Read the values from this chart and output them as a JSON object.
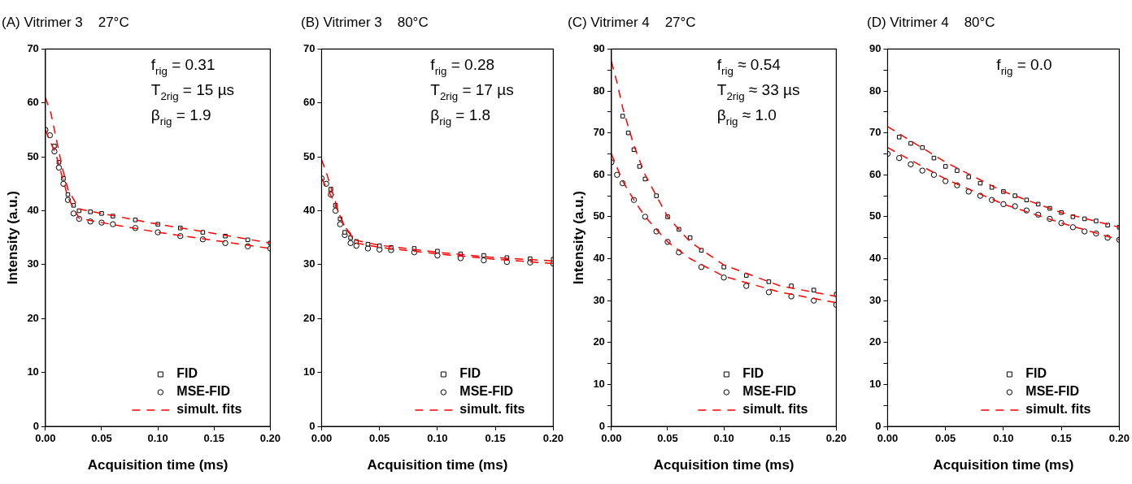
{
  "chart_data": [
    {
      "type": "scatter",
      "title": "(A) Vitrimer 3    27°C",
      "xlabel": "Acquisition time (ms)",
      "ylabel": "Intensity (a.u.)",
      "xlim": [
        0,
        0.2
      ],
      "xticks": [
        {
          "value": 0,
          "label": "0.00"
        },
        {
          "value": 0.05,
          "label": "0.05"
        },
        {
          "value": 0.1,
          "label": "0.10"
        },
        {
          "value": 0.15,
          "label": "0.15"
        },
        {
          "value": 0.2,
          "label": "0.20"
        }
      ],
      "ylim": [
        0,
        70
      ],
      "yticks": [
        0,
        10,
        20,
        30,
        40,
        50,
        60,
        70
      ],
      "grid": false,
      "legend": "bottom right",
      "annotations": [
        "f$_{rig}$ = 0.31",
        "T$_{2rig}$ = 15 µs",
        "β$_{rig}$ = 1.9"
      ],
      "series": [
        {
          "name": "FID",
          "marker": "square",
          "color": "#000000",
          "x": [
            0.008,
            0.012,
            0.016,
            0.02,
            0.025,
            0.03,
            0.04,
            0.05,
            0.06,
            0.08,
            0.1,
            0.12,
            0.14,
            0.16,
            0.18,
            0.2
          ],
          "values": [
            52,
            49,
            46,
            43,
            41,
            40,
            39.8,
            39.5,
            39,
            38.3,
            37.5,
            36.8,
            36,
            35.3,
            34.6,
            34
          ]
        },
        {
          "name": "MSE-FID",
          "marker": "circle",
          "color": "#000000",
          "x": [
            0,
            0.004,
            0.008,
            0.012,
            0.016,
            0.02,
            0.025,
            0.03,
            0.04,
            0.05,
            0.06,
            0.08,
            0.1,
            0.12,
            0.14,
            0.16,
            0.18,
            0.2
          ],
          "values": [
            55,
            54,
            51,
            48,
            45,
            42,
            39.5,
            38.5,
            38,
            37.8,
            37.5,
            36.8,
            36,
            35.3,
            34.7,
            34,
            33.4,
            33
          ]
        },
        {
          "name": "simult. fits",
          "type": "line",
          "line_style": "dashed",
          "color": "#ff0000",
          "x": [
            0,
            0.005,
            0.01,
            0.015,
            0.02,
            0.03,
            0.05,
            0.1,
            0.15,
            0.2
          ],
          "values": [
            61,
            58,
            53,
            48,
            44,
            40.3,
            39.5,
            37.5,
            35.8,
            34
          ]
        },
        {
          "type": "line",
          "line_style": "dashed",
          "color": "#ff0000",
          "x": [
            0,
            0.01,
            0.02,
            0.03,
            0.05,
            0.1,
            0.15,
            0.2
          ],
          "values": [
            55,
            50,
            42.5,
            38.6,
            37.8,
            36,
            34.5,
            33
          ]
        }
      ]
    },
    {
      "type": "scatter",
      "title": "(B) Vitrimer 3    80°C",
      "xlabel": "Acquisition time (ms)",
      "xlim": [
        0,
        0.2
      ],
      "xticks": [
        {
          "value": 0,
          "label": "0.00"
        },
        {
          "value": 0.05,
          "label": "0.05"
        },
        {
          "value": 0.1,
          "label": "0.10"
        },
        {
          "value": 0.15,
          "label": "0.15"
        },
        {
          "value": 0.2,
          "label": "0.20"
        }
      ],
      "ylim": [
        0,
        70
      ],
      "yticks": [
        0,
        10,
        20,
        30,
        40,
        50,
        60,
        70
      ],
      "grid": false,
      "legend": "bottom right",
      "annotations": [
        "f$_{rig}$ = 0.28",
        "T$_{2rig}$ = 17 µs",
        "β$_{rig}$ = 1.8"
      ],
      "series": [
        {
          "name": "FID",
          "marker": "square",
          "color": "#000000",
          "x": [
            0.008,
            0.012,
            0.016,
            0.02,
            0.025,
            0.03,
            0.04,
            0.05,
            0.06,
            0.08,
            0.1,
            0.12,
            0.14,
            0.16,
            0.18,
            0.2
          ],
          "values": [
            44,
            41,
            38.5,
            36,
            35,
            34.3,
            33.8,
            33.5,
            33.2,
            33,
            32.5,
            32,
            31.7,
            31.3,
            31.1,
            31
          ]
        },
        {
          "name": "MSE-FID",
          "marker": "circle",
          "color": "#000000",
          "x": [
            0,
            0.004,
            0.008,
            0.012,
            0.016,
            0.02,
            0.025,
            0.03,
            0.04,
            0.05,
            0.06,
            0.08,
            0.1,
            0.12,
            0.14,
            0.16,
            0.18,
            0.2
          ],
          "values": [
            46,
            45,
            43,
            40,
            37.5,
            35.5,
            34,
            33.5,
            33,
            32.8,
            32.7,
            32.3,
            31.7,
            31.2,
            30.8,
            30.5,
            30.4,
            30.2
          ]
        },
        {
          "name": "simult. fits",
          "type": "line",
          "line_style": "dashed",
          "color": "#ff0000",
          "x": [
            0,
            0.005,
            0.01,
            0.015,
            0.02,
            0.03,
            0.05,
            0.1,
            0.15,
            0.2
          ],
          "values": [
            49.5,
            46.5,
            43,
            39.5,
            37,
            34.5,
            33.6,
            32.3,
            31.3,
            30.7
          ]
        },
        {
          "type": "line",
          "line_style": "dashed",
          "color": "#ff0000",
          "x": [
            0,
            0.01,
            0.02,
            0.03,
            0.05,
            0.1,
            0.15,
            0.2
          ],
          "values": [
            46,
            42,
            37,
            34,
            33.2,
            32,
            31,
            30.2
          ]
        }
      ]
    },
    {
      "type": "scatter",
      "title": "(C) Vitrimer 4    27°C",
      "xlabel": "Acquisition time (ms)",
      "ylabel": "Intensity (a.u.)",
      "xlim": [
        0,
        0.2
      ],
      "xticks": [
        {
          "value": 0,
          "label": "0.00"
        },
        {
          "value": 0.05,
          "label": "0.05"
        },
        {
          "value": 0.1,
          "label": "0.10"
        },
        {
          "value": 0.15,
          "label": "0.15"
        },
        {
          "value": 0.2,
          "label": "0.20"
        }
      ],
      "ylim": [
        0,
        90
      ],
      "yticks": [
        0,
        {
          "value": 5,
          "label": null
        },
        10,
        {
          "value": 15,
          "label": null
        },
        20,
        {
          "value": 25,
          "label": null
        },
        30,
        {
          "value": 35,
          "label": null
        },
        40,
        {
          "value": 45,
          "label": null
        },
        50,
        {
          "value": 55,
          "label": null
        },
        60,
        {
          "value": 65,
          "label": null
        },
        70,
        {
          "value": 75,
          "label": null
        },
        80,
        {
          "value": 85,
          "label": null
        },
        90
      ],
      "grid": false,
      "legend": "bottom right",
      "annotations": [
        "f$_{rig}$ ≈ 0.54",
        "T$_{2rig}$ ≈ 33 µs",
        "β$_{rig}$ ≈ 1.0"
      ],
      "series": [
        {
          "name": "FID",
          "marker": "square",
          "color": "#000000",
          "x": [
            0.01,
            0.015,
            0.02,
            0.025,
            0.03,
            0.04,
            0.05,
            0.06,
            0.07,
            0.08,
            0.1,
            0.12,
            0.14,
            0.16,
            0.18,
            0.2
          ],
          "values": [
            74,
            70,
            66,
            62,
            59,
            55,
            50,
            47,
            45,
            42,
            38,
            36,
            34.5,
            33.5,
            32.5,
            31.5
          ]
        },
        {
          "name": "MSE-FID",
          "marker": "circle",
          "color": "#000000",
          "x": [
            0,
            0.005,
            0.01,
            0.02,
            0.03,
            0.04,
            0.05,
            0.06,
            0.08,
            0.1,
            0.12,
            0.14,
            0.16,
            0.18,
            0.2
          ],
          "values": [
            63,
            60,
            58,
            54,
            50,
            46.5,
            44,
            41.5,
            38,
            35.5,
            33.5,
            32,
            31,
            30,
            29
          ]
        },
        {
          "name": "simult. fits",
          "type": "line",
          "line_style": "dashed",
          "color": "#ff0000",
          "x": [
            0,
            0.005,
            0.01,
            0.02,
            0.03,
            0.05,
            0.07,
            0.1,
            0.15,
            0.2
          ],
          "values": [
            87,
            82,
            76,
            67,
            60,
            50,
            44,
            38.5,
            33.5,
            31
          ]
        },
        {
          "type": "line",
          "line_style": "dashed",
          "color": "#ff0000",
          "x": [
            0,
            0.01,
            0.02,
            0.03,
            0.05,
            0.07,
            0.1,
            0.15,
            0.2
          ],
          "values": [
            65,
            58.5,
            54,
            50,
            44,
            40,
            35.8,
            32,
            29.5
          ]
        }
      ]
    },
    {
      "type": "scatter",
      "title": "(D) Vitrimer 4    80°C",
      "xlabel": "Acquisition time (ms)",
      "xlim": [
        0,
        0.2
      ],
      "xticks": [
        {
          "value": 0,
          "label": "0.00"
        },
        {
          "value": 0.05,
          "label": "0.05"
        },
        {
          "value": 0.1,
          "label": "0.10"
        },
        {
          "value": 0.15,
          "label": "0.15"
        },
        {
          "value": 0.2,
          "label": "0.20"
        }
      ],
      "ylim": [
        0,
        90
      ],
      "yticks": [
        0,
        {
          "value": 5,
          "label": null
        },
        10,
        {
          "value": 15,
          "label": null
        },
        20,
        {
          "value": 25,
          "label": null
        },
        30,
        {
          "value": 35,
          "label": null
        },
        40,
        {
          "value": 45,
          "label": null
        },
        50,
        {
          "value": 55,
          "label": null
        },
        60,
        {
          "value": 65,
          "label": null
        },
        70,
        {
          "value": 75,
          "label": null
        },
        80,
        {
          "value": 85,
          "label": null
        },
        90
      ],
      "grid": false,
      "legend": "bottom right",
      "annotations": [
        "f$_{rig}$ = 0.0"
      ],
      "series": [
        {
          "name": "FID",
          "marker": "square",
          "color": "#000000",
          "x": [
            0.01,
            0.02,
            0.03,
            0.04,
            0.05,
            0.06,
            0.07,
            0.08,
            0.09,
            0.1,
            0.11,
            0.12,
            0.13,
            0.14,
            0.15,
            0.16,
            0.17,
            0.18,
            0.19,
            0.2
          ],
          "values": [
            69,
            67.5,
            66.5,
            64,
            62,
            61,
            59.5,
            58,
            57,
            56,
            55,
            54,
            53,
            52,
            51,
            50,
            49.5,
            49,
            48,
            47.5
          ]
        },
        {
          "name": "MSE-FID",
          "marker": "circle",
          "color": "#000000",
          "x": [
            0,
            0.01,
            0.02,
            0.03,
            0.04,
            0.05,
            0.06,
            0.07,
            0.08,
            0.09,
            0.1,
            0.11,
            0.12,
            0.13,
            0.14,
            0.15,
            0.16,
            0.17,
            0.18,
            0.19,
            0.2
          ],
          "values": [
            65,
            64,
            62.5,
            61,
            60,
            58.5,
            57.5,
            56,
            55,
            54,
            53,
            52.5,
            51.5,
            50.5,
            49.5,
            48.5,
            47.5,
            46.5,
            46,
            45,
            44.5
          ]
        },
        {
          "name": "simult. fits",
          "type": "line",
          "line_style": "dashed",
          "color": "#ff0000",
          "x": [
            0,
            0.05,
            0.1,
            0.15,
            0.2
          ],
          "values": [
            71.5,
            63,
            56,
            51,
            47.5
          ]
        },
        {
          "type": "line",
          "line_style": "dashed",
          "color": "#ff0000",
          "x": [
            0,
            0.05,
            0.1,
            0.15,
            0.2
          ],
          "values": [
            66.5,
            59,
            53,
            48.5,
            44.5
          ]
        }
      ]
    }
  ]
}
